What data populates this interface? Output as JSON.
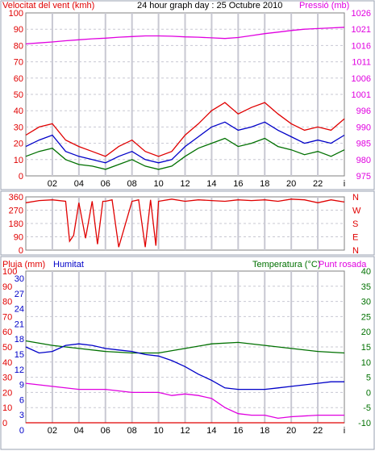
{
  "colors": {
    "red": "#e00000",
    "blue": "#0000c8",
    "green": "#007000",
    "magenta": "#e000e0",
    "grid": "#c8c8d2",
    "frame": "#9aa0b0"
  },
  "chart_data": [
    {
      "type": "line",
      "title": "24 hour graph day : 25 Octubre 2010",
      "ylabel": "Velocitat del vent (kmh)",
      "y2label": "Pressió (mb)",
      "x_ticks": [
        "02",
        "04",
        "06",
        "08",
        "10",
        "12",
        "14",
        "16",
        "18",
        "20",
        "22",
        "i"
      ],
      "ylim": [
        0,
        100
      ],
      "y_ticks": [
        "100",
        "90",
        "80",
        "70",
        "60",
        "50",
        "40",
        "30",
        "20",
        "10",
        "0"
      ],
      "y2lim": [
        975,
        1026
      ],
      "y2_ticks": [
        "1026",
        "1021",
        "1016",
        "1011",
        "1006",
        "1001",
        "996",
        "990",
        "985",
        "980",
        "975"
      ],
      "grid": true,
      "series": [
        {
          "axis": "y2",
          "color": "magenta",
          "x": [
            0,
            1,
            2,
            3,
            4,
            5,
            6,
            7,
            8,
            9,
            10,
            11,
            12,
            13,
            14,
            15,
            16,
            17,
            18,
            19,
            20,
            21,
            22,
            23,
            24
          ],
          "values": [
            1016.3,
            1016.6,
            1016.9,
            1017.3,
            1017.6,
            1017.9,
            1018.1,
            1018.4,
            1018.6,
            1018.8,
            1018.8,
            1018.7,
            1018.5,
            1018.4,
            1018.2,
            1018.0,
            1018.3,
            1018.9,
            1019.5,
            1020.0,
            1020.5,
            1020.9,
            1021.1,
            1021.3,
            1021.5
          ]
        },
        {
          "axis": "y",
          "color": "red",
          "x": [
            0,
            1,
            2,
            3,
            4,
            5,
            6,
            7,
            8,
            9,
            10,
            11,
            12,
            13,
            14,
            15,
            16,
            17,
            18,
            19,
            20,
            21,
            22,
            23,
            24
          ],
          "values": [
            25,
            30,
            32,
            22,
            18,
            15,
            12,
            18,
            22,
            15,
            12,
            15,
            25,
            32,
            40,
            45,
            38,
            42,
            45,
            38,
            32,
            28,
            30,
            28,
            35
          ]
        },
        {
          "axis": "y",
          "color": "blue",
          "x": [
            0,
            1,
            2,
            3,
            4,
            5,
            6,
            7,
            8,
            9,
            10,
            11,
            12,
            13,
            14,
            15,
            16,
            17,
            18,
            19,
            20,
            21,
            22,
            23,
            24
          ],
          "values": [
            18,
            22,
            25,
            15,
            12,
            10,
            8,
            12,
            15,
            10,
            8,
            10,
            18,
            24,
            30,
            33,
            28,
            30,
            33,
            28,
            24,
            20,
            22,
            20,
            25
          ]
        },
        {
          "axis": "y",
          "color": "green",
          "x": [
            0,
            1,
            2,
            3,
            4,
            5,
            6,
            7,
            8,
            9,
            10,
            11,
            12,
            13,
            14,
            15,
            16,
            17,
            18,
            19,
            20,
            21,
            22,
            23,
            24
          ],
          "values": [
            12,
            15,
            17,
            10,
            7,
            6,
            4,
            7,
            10,
            6,
            4,
            6,
            12,
            17,
            20,
            23,
            18,
            20,
            23,
            18,
            16,
            13,
            15,
            12,
            16
          ]
        }
      ]
    },
    {
      "type": "line",
      "ylim": [
        0,
        360
      ],
      "y_ticks": [
        "360",
        "270",
        "180",
        "90",
        "0"
      ],
      "y2_ticks": [
        "N",
        "W",
        "S",
        "E",
        "N"
      ],
      "grid": true,
      "series": [
        {
          "color": "red",
          "x": [
            0,
            1,
            2,
            3,
            3.3,
            3.6,
            4,
            4.5,
            5,
            5.4,
            5.8,
            6,
            6.5,
            7,
            8,
            8.5,
            9,
            9.4,
            9.8,
            10,
            11,
            12,
            13,
            14,
            15,
            16,
            17,
            18,
            19,
            20,
            21,
            22,
            23,
            24
          ],
          "values": [
            320,
            335,
            340,
            330,
            60,
            100,
            320,
            80,
            330,
            40,
            330,
            330,
            340,
            20,
            330,
            340,
            20,
            340,
            30,
            330,
            345,
            330,
            340,
            335,
            330,
            340,
            335,
            340,
            330,
            345,
            340,
            320,
            340,
            325
          ]
        }
      ]
    },
    {
      "type": "line",
      "ylabel": "Pluja (mm)",
      "y_label_2": "Humitat",
      "y2label": "Temperatura (°C)",
      "y2label_2": "Punt rosada",
      "x_ticks": [
        "02",
        "04",
        "06",
        "08",
        "10",
        "12",
        "14",
        "16",
        "18",
        "20",
        "22",
        "i"
      ],
      "ylim_rain": [
        0,
        30
      ],
      "ylim_hum": [
        0,
        100
      ],
      "y_ticks_rain": [
        "30",
        "27",
        "24",
        "21",
        "18",
        "15",
        "12",
        "9",
        "6",
        "3",
        "0"
      ],
      "y_ticks_hum": [
        "100",
        "90",
        "80",
        "70",
        "60",
        "50",
        "40",
        "30",
        "20",
        "10",
        "0"
      ],
      "y2lim": [
        -10,
        40
      ],
      "y2_ticks": [
        "40",
        "35",
        "30",
        "25",
        "20",
        "15",
        "10",
        "5",
        "0",
        "-5",
        "-10"
      ],
      "grid": true,
      "series": [
        {
          "name": "Temperatura (°C)",
          "axis": "y2",
          "color": "green",
          "x": [
            0,
            2,
            4,
            6,
            8,
            10,
            12,
            14,
            16,
            18,
            20,
            22,
            24
          ],
          "values": [
            17,
            15.5,
            14.5,
            13.5,
            13,
            13,
            14.5,
            16,
            16.5,
            15.5,
            14.5,
            13.5,
            13
          ]
        },
        {
          "name": "Humitat",
          "axis": "hum",
          "color": "blue",
          "x": [
            0,
            1,
            2,
            3,
            4,
            5,
            6,
            7,
            8,
            9,
            10,
            11,
            12,
            13,
            14,
            15,
            16,
            17,
            18,
            19,
            20,
            21,
            22,
            23,
            24
          ],
          "values": [
            50,
            46,
            47,
            51,
            52,
            51,
            49,
            48,
            47,
            45,
            44,
            41,
            37,
            32,
            28,
            23,
            22,
            22,
            22,
            23,
            24,
            25,
            26,
            27,
            27
          ]
        },
        {
          "name": "Punt rosada",
          "axis": "y2",
          "color": "magenta",
          "x": [
            0,
            2,
            4,
            6,
            8,
            10,
            11,
            12,
            13,
            14,
            15,
            16,
            17,
            18,
            19,
            20,
            22,
            24
          ],
          "values": [
            3,
            2,
            1,
            1,
            0,
            0,
            -1,
            -0.5,
            -1,
            -2,
            -5,
            -7,
            -7.5,
            -7.5,
            -8.5,
            -8,
            -7.5,
            -7.5
          ]
        },
        {
          "name": "Pluja (mm)",
          "axis": "rain",
          "color": "red",
          "x": [
            0,
            24
          ],
          "values": [
            0,
            0
          ]
        }
      ]
    }
  ]
}
